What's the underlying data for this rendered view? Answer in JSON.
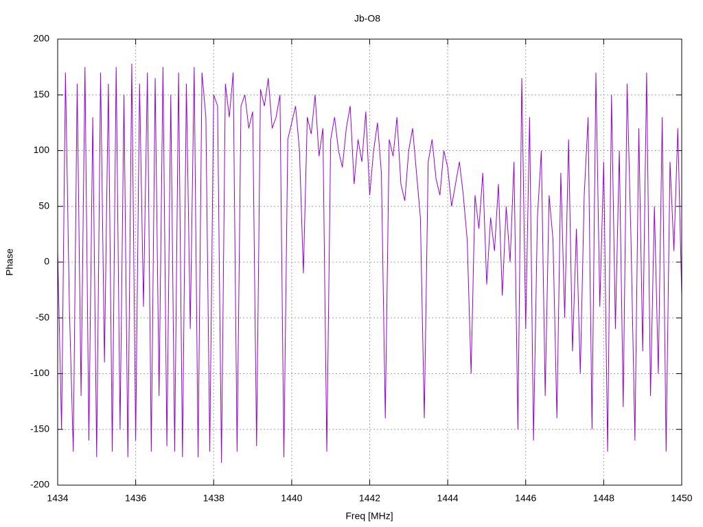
{
  "chart_data": {
    "type": "line",
    "title": "Jb-O8",
    "x_label": "Freq [MHz]",
    "y_label": "Phase",
    "xlim": [
      1434,
      1450
    ],
    "xticks": [
      1434,
      1436,
      1438,
      1440,
      1442,
      1444,
      1446,
      1448,
      1450
    ],
    "ylim": [
      -200,
      200
    ],
    "yticks": [
      -200,
      -150,
      -100,
      -50,
      0,
      50,
      100,
      150,
      200
    ],
    "grid": true,
    "x": [
      1434,
      1434.1,
      1434.2,
      1434.3,
      1434.4,
      1434.5,
      1434.6,
      1434.7,
      1434.8,
      1434.9,
      1435,
      1435.1,
      1435.2,
      1435.3,
      1435.4,
      1435.5,
      1435.6,
      1435.7,
      1435.8,
      1435.9,
      1436,
      1436.1,
      1436.2,
      1436.3,
      1436.4,
      1436.5,
      1436.6,
      1436.7,
      1436.8,
      1436.9,
      1437,
      1437.1,
      1437.2,
      1437.3,
      1437.4,
      1437.5,
      1437.6,
      1437.7,
      1437.8,
      1437.9,
      1438,
      1438.1,
      1438.2,
      1438.3,
      1438.4,
      1438.5,
      1438.6,
      1438.7,
      1438.8,
      1438.9,
      1439,
      1439.1,
      1439.2,
      1439.3,
      1439.4,
      1439.5,
      1439.6,
      1439.7,
      1439.8,
      1439.9,
      1440,
      1440.1,
      1440.2,
      1440.3,
      1440.4,
      1440.5,
      1440.6,
      1440.7,
      1440.8,
      1440.9,
      1441,
      1441.1,
      1441.2,
      1441.3,
      1441.4,
      1441.5,
      1441.6,
      1441.7,
      1441.8,
      1441.9,
      1442,
      1442.1,
      1442.2,
      1442.3,
      1442.4,
      1442.5,
      1442.6,
      1442.7,
      1442.8,
      1442.9,
      1443,
      1443.1,
      1443.2,
      1443.3,
      1443.4,
      1443.5,
      1443.6,
      1443.7,
      1443.8,
      1443.9,
      1444,
      1444.1,
      1444.2,
      1444.3,
      1444.4,
      1444.5,
      1444.6,
      1444.7,
      1444.8,
      1444.9,
      1445,
      1445.1,
      1445.2,
      1445.3,
      1445.4,
      1445.5,
      1445.6,
      1445.7,
      1445.8,
      1445.9,
      1446,
      1446.1,
      1446.2,
      1446.3,
      1446.4,
      1446.5,
      1446.6,
      1446.7,
      1446.8,
      1446.9,
      1447,
      1447.1,
      1447.2,
      1447.3,
      1447.4,
      1447.5,
      1447.6,
      1447.7,
      1447.8,
      1447.9,
      1448,
      1448.1,
      1448.2,
      1448.3,
      1448.4,
      1448.5,
      1448.6,
      1448.7,
      1448.8,
      1448.9,
      1449,
      1449.1,
      1449.2,
      1449.3,
      1449.4,
      1449.5,
      1449.6,
      1449.7,
      1449.8,
      1449.9,
      1450
    ],
    "series": [
      {
        "color": "#9400d3",
        "values": [
          10,
          -150,
          170,
          -40,
          -170,
          160,
          -120,
          175,
          -160,
          130,
          -175,
          170,
          -90,
          160,
          -170,
          175,
          -150,
          150,
          -175,
          178,
          -160,
          160,
          -40,
          170,
          -170,
          165,
          -120,
          175,
          -165,
          150,
          -170,
          170,
          -175,
          160,
          -60,
          175,
          -175,
          170,
          130,
          -170,
          150,
          140,
          -180,
          160,
          130,
          170,
          -170,
          140,
          150,
          120,
          135,
          -165,
          155,
          140,
          165,
          120,
          130,
          150,
          -175,
          110,
          125,
          140,
          100,
          -10,
          130,
          115,
          150,
          95,
          120,
          -170,
          110,
          130,
          100,
          85,
          120,
          140,
          70,
          110,
          90,
          135,
          60,
          100,
          125,
          80,
          -140,
          110,
          95,
          130,
          70,
          55,
          100,
          120,
          80,
          40,
          -140,
          90,
          110,
          75,
          60,
          100,
          85,
          50,
          70,
          90,
          60,
          20,
          -100,
          60,
          30,
          80,
          -20,
          40,
          10,
          70,
          -30,
          50,
          0,
          90,
          -150,
          165,
          -60,
          130,
          -160,
          40,
          100,
          -120,
          60,
          20,
          -140,
          80,
          -50,
          110,
          -80,
          30,
          -100,
          60,
          130,
          -150,
          170,
          -40,
          90,
          -170,
          150,
          -60,
          100,
          -130,
          160,
          20,
          -160,
          120,
          -80,
          170,
          -120,
          50,
          -100,
          130,
          -170,
          90,
          10,
          120,
          -30
        ]
      }
    ]
  }
}
